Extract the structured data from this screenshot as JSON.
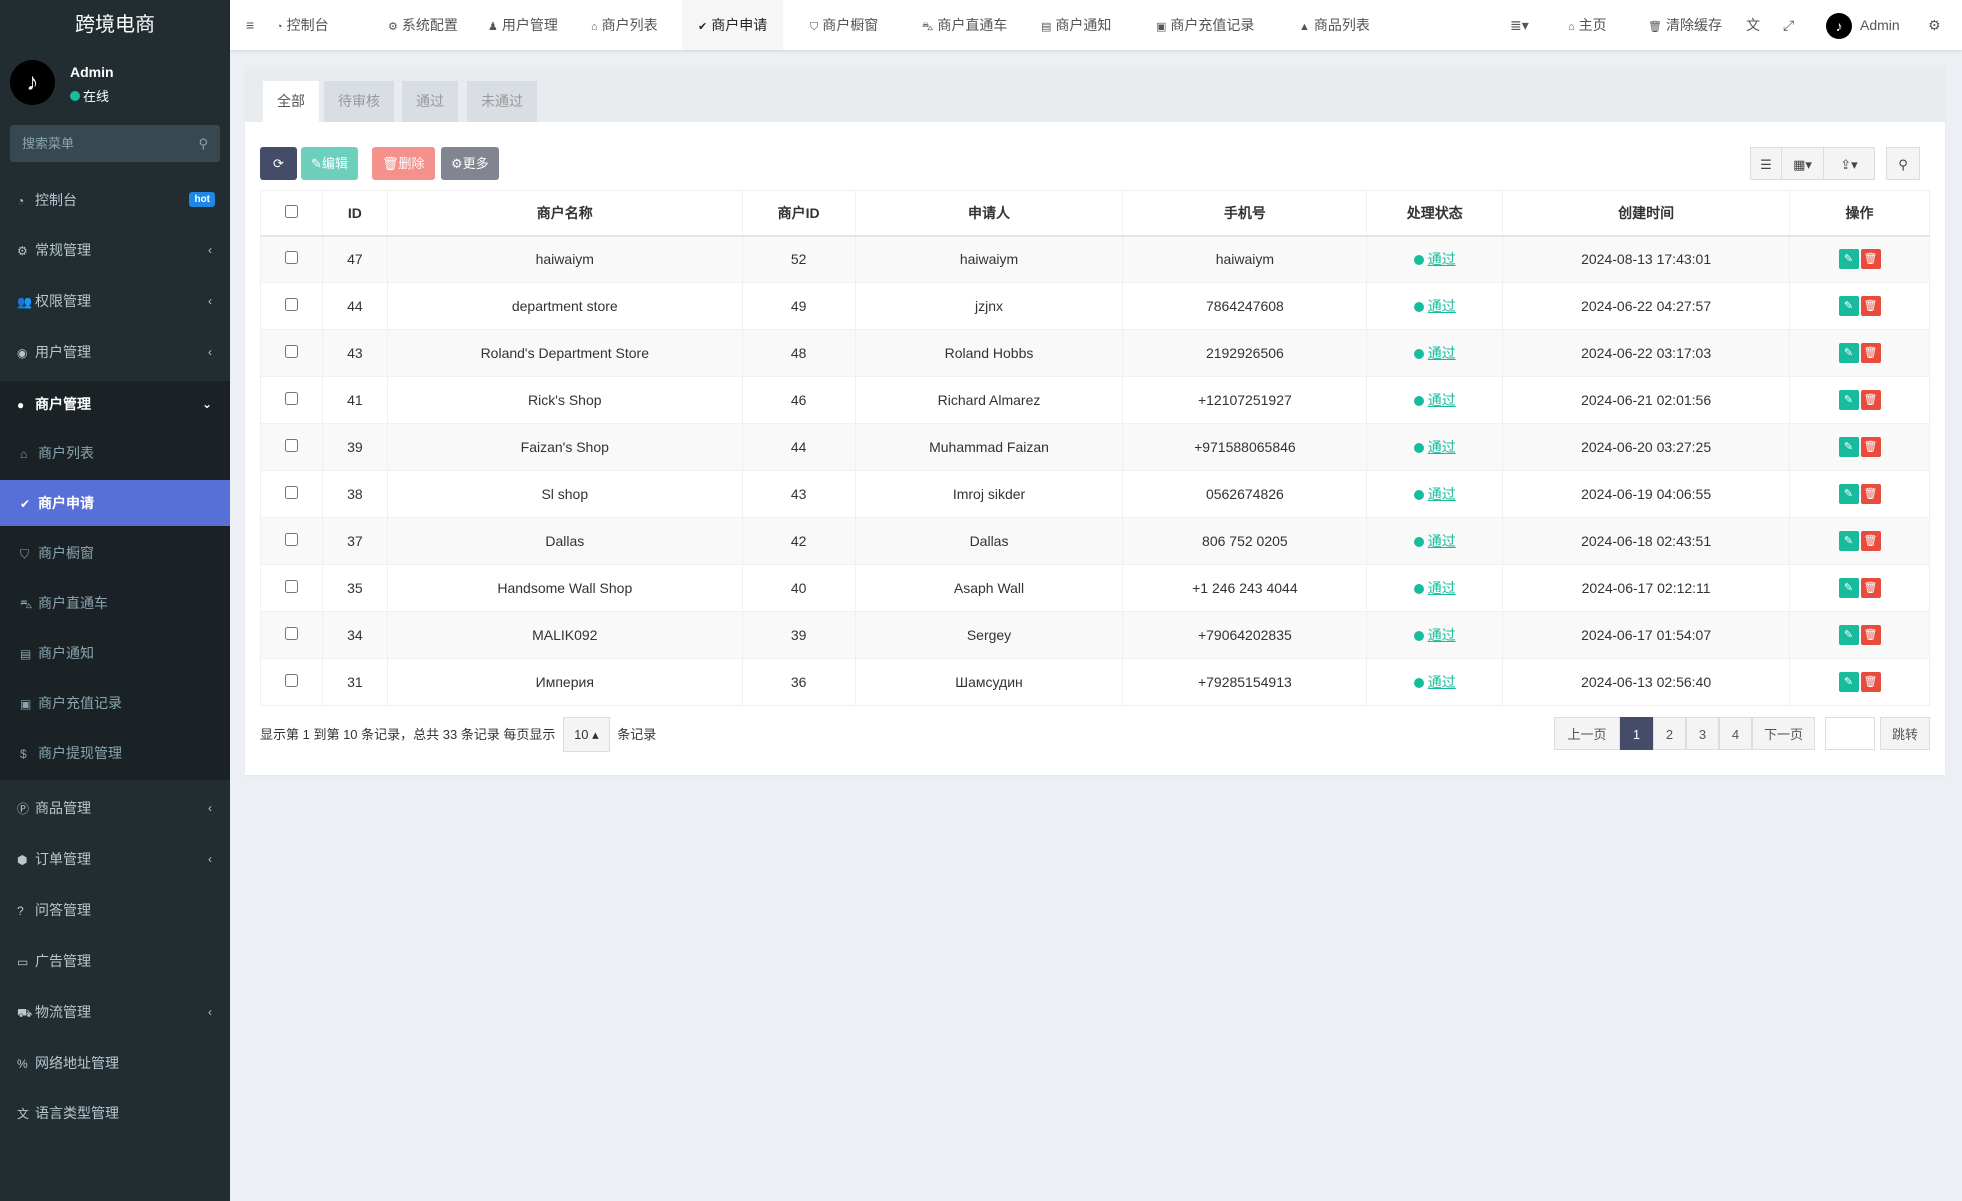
{
  "sidebar": {
    "brand": "跨境电商",
    "user": "Admin",
    "status": "在线",
    "search_placeholder": "搜索菜单",
    "hot_badge": "hot",
    "items": [
      {
        "label": "控制台",
        "icon": "dashboard-icon"
      },
      {
        "label": "常规管理",
        "icon": "cogs-icon"
      },
      {
        "label": "权限管理",
        "icon": "users-icon"
      },
      {
        "label": "用户管理",
        "icon": "user-circle-icon"
      },
      {
        "label": "商户管理",
        "icon": "apple-icon"
      },
      {
        "label": "商品管理",
        "icon": "product-icon"
      },
      {
        "label": "订单管理",
        "icon": "cube-icon"
      },
      {
        "label": "问答管理",
        "icon": "question-icon"
      },
      {
        "label": "广告管理",
        "icon": "ad-icon"
      },
      {
        "label": "物流管理",
        "icon": "truck-icon"
      },
      {
        "label": "网络地址管理",
        "icon": "link-icon"
      },
      {
        "label": "语言类型管理",
        "icon": "language-icon"
      }
    ],
    "sub_items": [
      {
        "label": "商户列表",
        "icon": "home-icon"
      },
      {
        "label": "商户申请",
        "icon": "check-circle-icon"
      },
      {
        "label": "商户橱窗",
        "icon": "cart-icon"
      },
      {
        "label": "商户直通车",
        "icon": "car-icon"
      },
      {
        "label": "商户通知",
        "icon": "newspaper-icon"
      },
      {
        "label": "商户充值记录",
        "icon": "money-icon"
      },
      {
        "label": "商户提现管理",
        "icon": "dollar-icon"
      }
    ]
  },
  "topbar": {
    "tabs": [
      {
        "label": "控制台",
        "icon": "dashboard-icon"
      },
      {
        "label": "系统配置",
        "icon": "gear-icon"
      },
      {
        "label": "用户管理",
        "icon": "user-icon"
      },
      {
        "label": "商户列表",
        "icon": "home-icon"
      },
      {
        "label": "商户申请",
        "icon": "check-circle-icon"
      },
      {
        "label": "商户橱窗",
        "icon": "cart-icon"
      },
      {
        "label": "商户直通车",
        "icon": "car-icon"
      },
      {
        "label": "商户通知",
        "icon": "newspaper-icon"
      },
      {
        "label": "商户充值记录",
        "icon": "money-icon"
      },
      {
        "label": "商品列表",
        "icon": "shopping-bag-icon"
      }
    ],
    "home": "主页",
    "clear_cache": "清除缓存",
    "admin": "Admin"
  },
  "filter_tabs": [
    "全部",
    "待审核",
    "通过",
    "未通过"
  ],
  "toolbar": {
    "edit": "编辑",
    "delete": "删除",
    "more": "更多"
  },
  "table": {
    "headers": [
      "ID",
      "商户名称",
      "商户ID",
      "申请人",
      "手机号",
      "处理状态",
      "创建时间",
      "操作"
    ],
    "rows": [
      [
        "47",
        "haiwaiym",
        "52",
        "haiwaiym",
        "haiwaiym",
        "通过",
        "2024-08-13 17:43:01"
      ],
      [
        "44",
        "department store",
        "49",
        "jzjnx",
        "7864247608",
        "通过",
        "2024-06-22 04:27:57"
      ],
      [
        "43",
        "Roland's Department Store",
        "48",
        "Roland Hobbs",
        "2192926506",
        "通过",
        "2024-06-22 03:17:03"
      ],
      [
        "41",
        "Rick's Shop",
        "46",
        "Richard Almarez",
        "+12107251927",
        "通过",
        "2024-06-21 02:01:56"
      ],
      [
        "39",
        "Faizan's Shop",
        "44",
        "Muhammad Faizan",
        "+971588065846",
        "通过",
        "2024-06-20 03:27:25"
      ],
      [
        "38",
        "Sl shop",
        "43",
        "Imroj sikder",
        "0562674826",
        "通过",
        "2024-06-19 04:06:55"
      ],
      [
        "37",
        "Dallas",
        "42",
        "Dallas",
        "806 752 0205",
        "通过",
        "2024-06-18 02:43:51"
      ],
      [
        "35",
        "Handsome Wall Shop",
        "40",
        "Asaph Wall",
        "+1 246 243 4044",
        "通过",
        "2024-06-17 02:12:11"
      ],
      [
        "34",
        "MALIK092",
        "39",
        "Sergey",
        "+79064202835",
        "通过",
        "2024-06-17 01:54:07"
      ],
      [
        "31",
        "Империя",
        "36",
        "Шамсудин",
        "+79285154913",
        "通过",
        "2024-06-13 02:56:40"
      ]
    ]
  },
  "footer": {
    "summary": "显示第 1 到第 10 条记录，总共 33 条记录 每页显示",
    "page_size": "10",
    "suffix": "条记录",
    "prev": "上一页",
    "pages": [
      "1",
      "2",
      "3",
      "4"
    ],
    "current_page": "1",
    "next": "下一页",
    "jump": "跳转"
  }
}
